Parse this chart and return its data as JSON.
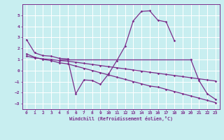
{
  "xlabel": "Windchill (Refroidissement éolien,°C)",
  "x": [
    0,
    1,
    2,
    3,
    4,
    5,
    6,
    7,
    8,
    9,
    10,
    11,
    12,
    13,
    14,
    15,
    16,
    17,
    18,
    19,
    20,
    21,
    22,
    23
  ],
  "line_main": [
    2.8,
    1.6,
    1.35,
    1.3,
    1.1,
    1.05,
    -2.1,
    -0.85,
    -0.9,
    -1.25,
    -0.3,
    0.9,
    2.2,
    4.5,
    5.35,
    5.4,
    4.55,
    4.4,
    2.7,
    null,
    1.0,
    -0.9,
    -2.1,
    -2.6
  ],
  "line_trend_steep": [
    1.5,
    1.2,
    1.0,
    0.9,
    0.7,
    0.6,
    0.4,
    0.2,
    0.0,
    -0.2,
    -0.4,
    -0.6,
    -0.8,
    -1.0,
    -1.2,
    -1.4,
    -1.5,
    -1.7,
    -1.9,
    -2.1,
    -2.3,
    -2.5,
    -2.7,
    -2.9
  ],
  "line_trend_gentle": [
    1.3,
    1.15,
    1.05,
    1.0,
    0.9,
    0.85,
    0.75,
    0.65,
    0.55,
    0.45,
    0.35,
    0.25,
    0.15,
    0.05,
    -0.05,
    -0.15,
    -0.25,
    -0.35,
    -0.45,
    -0.55,
    -0.65,
    -0.75,
    -0.85,
    -0.95
  ],
  "line_horizontal_x": [
    4,
    5,
    6,
    7,
    8,
    9,
    10,
    11,
    12,
    13,
    14,
    15,
    16,
    17,
    18,
    19,
    20
  ],
  "line_horizontal_y": [
    1.0,
    1.0,
    1.0,
    1.0,
    1.0,
    1.0,
    1.0,
    1.0,
    1.0,
    1.0,
    1.0,
    1.0,
    1.0,
    1.0,
    1.0,
    1.0,
    1.0
  ],
  "color": "#7b2d8b",
  "bg_color": "#c8eef0",
  "grid_color": "#ffffff",
  "ylim": [
    -3.5,
    6.0
  ],
  "xlim": [
    -0.5,
    23.5
  ],
  "yticks": [
    -3,
    -2,
    -1,
    0,
    1,
    2,
    3,
    4,
    5
  ],
  "xticks": [
    0,
    1,
    2,
    3,
    4,
    5,
    6,
    7,
    8,
    9,
    10,
    11,
    12,
    13,
    14,
    15,
    16,
    17,
    18,
    19,
    20,
    21,
    22,
    23
  ]
}
